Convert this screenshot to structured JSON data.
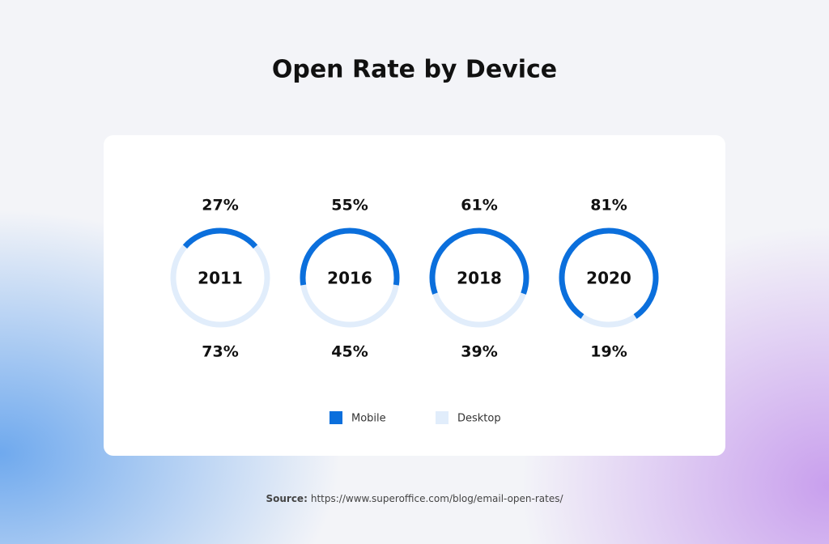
{
  "chart_data": {
    "type": "donut",
    "title": "Open Rate by Device",
    "categories": [
      "2011",
      "2016",
      "2018",
      "2020"
    ],
    "series": [
      {
        "name": "Mobile",
        "color": "#0b6fdc",
        "values": [
          27,
          55,
          61,
          81
        ],
        "value_labels": [
          "27%",
          "55%",
          "61%",
          "81%"
        ]
      },
      {
        "name": "Desktop",
        "color": "#e1edfb",
        "values": [
          73,
          45,
          39,
          19
        ],
        "value_labels": [
          "73%",
          "45%",
          "39%",
          "19%"
        ]
      }
    ],
    "source_label": "Source:",
    "source": "https://www.superoffice.com/blog/email-open-rates/"
  }
}
